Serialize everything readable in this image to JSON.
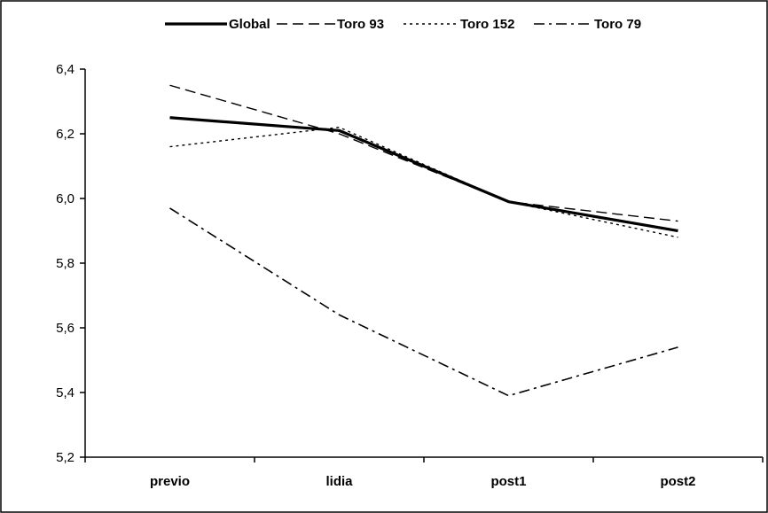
{
  "chart_data": {
    "type": "line",
    "title": "",
    "xlabel": "",
    "ylabel": "",
    "categories": [
      "previo",
      "lidia",
      "post1",
      "post2"
    ],
    "ylim": [
      5.2,
      6.4
    ],
    "yticks": [
      "5,2",
      "5,4",
      "5,6",
      "5,8",
      "6,0",
      "6,2",
      "6,4"
    ],
    "ytick_values": [
      5.2,
      5.4,
      5.6,
      5.8,
      6.0,
      6.2,
      6.4
    ],
    "grid": false,
    "legend_position": "top",
    "series": [
      {
        "name": "Global",
        "values": [
          6.25,
          6.21,
          5.99,
          5.9
        ],
        "style": "solid"
      },
      {
        "name": "Toro 93",
        "values": [
          6.35,
          6.2,
          5.99,
          5.93
        ],
        "style": "dashed"
      },
      {
        "name": "Toro 152",
        "values": [
          6.16,
          6.22,
          5.99,
          5.88
        ],
        "style": "dotted"
      },
      {
        "name": "Toro 79",
        "values": [
          5.97,
          5.64,
          5.39,
          5.54
        ],
        "style": "dashdot"
      }
    ]
  }
}
